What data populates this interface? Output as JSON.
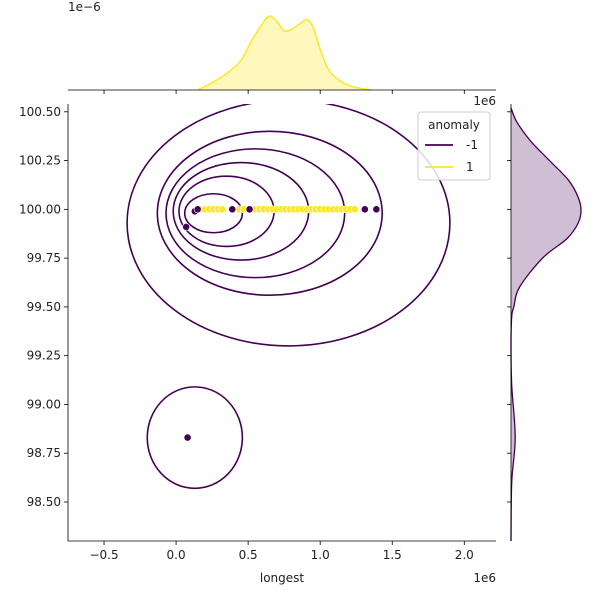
{
  "chart_data": {
    "type": "scatter",
    "title": "",
    "xlabel": "longest",
    "ylabel": "",
    "x_offset_label": "1e6",
    "y_offset_label": "1e6",
    "top_marginal_offset_label": "1e−6",
    "xlim": [
      -0.75,
      2.22
    ],
    "ylim": [
      98.3,
      100.54
    ],
    "x_ticks": [
      -0.5,
      0.0,
      0.5,
      1.0,
      1.5,
      2.0
    ],
    "x_tick_labels": [
      "−0.5",
      "0.0",
      "0.5",
      "1.0",
      "1.5",
      "2.0"
    ],
    "y_ticks": [
      98.5,
      98.75,
      99.0,
      99.25,
      99.5,
      99.75,
      100.0,
      100.25,
      100.5
    ],
    "y_tick_labels": [
      "98.50",
      "98.75",
      "99.00",
      "99.25",
      "99.50",
      "99.75",
      "100.00",
      "100.25",
      "100.50"
    ],
    "legend": {
      "title": "anomaly",
      "placement": "top-right",
      "entries": [
        {
          "label": "-1",
          "color": "#440154"
        },
        {
          "label": "1",
          "color": "#fde725"
        }
      ]
    },
    "series": [
      {
        "name": "-1",
        "color": "#440154",
        "points": [
          [
            0.07,
            99.91
          ],
          [
            0.13,
            99.99
          ],
          [
            0.15,
            100.0
          ],
          [
            0.39,
            100.0
          ],
          [
            0.51,
            100.0
          ],
          [
            1.31,
            100.0
          ],
          [
            1.39,
            100.0
          ],
          [
            0.08,
            98.83
          ]
        ]
      },
      {
        "name": "1",
        "color": "#fde725",
        "points": [
          [
            0.17,
            100.0
          ],
          [
            0.2,
            100.0
          ],
          [
            0.23,
            100.0
          ],
          [
            0.26,
            100.0
          ],
          [
            0.29,
            100.0
          ],
          [
            0.32,
            100.0
          ],
          [
            0.44,
            100.0
          ],
          [
            0.47,
            100.0
          ],
          [
            0.55,
            100.0
          ],
          [
            0.58,
            100.0
          ],
          [
            0.61,
            100.0
          ],
          [
            0.64,
            100.0
          ],
          [
            0.67,
            100.0
          ],
          [
            0.7,
            100.0
          ],
          [
            0.73,
            100.0
          ],
          [
            0.76,
            100.0
          ],
          [
            0.79,
            100.0
          ],
          [
            0.82,
            100.0
          ],
          [
            0.85,
            100.0
          ],
          [
            0.88,
            100.0
          ],
          [
            0.91,
            100.0
          ],
          [
            0.94,
            100.0
          ],
          [
            0.97,
            100.0
          ],
          [
            1.0,
            100.0
          ],
          [
            1.03,
            100.0
          ],
          [
            1.06,
            100.0
          ],
          [
            1.09,
            100.0
          ],
          [
            1.12,
            100.0
          ],
          [
            1.15,
            100.0
          ],
          [
            1.18,
            100.0
          ],
          [
            1.21,
            100.0
          ],
          [
            1.24,
            100.0
          ]
        ]
      }
    ],
    "marginal_top": {
      "series": "1",
      "color": "#fde725",
      "x": [
        0.15,
        0.25,
        0.35,
        0.45,
        0.52,
        0.6,
        0.65,
        0.7,
        0.75,
        0.8,
        0.86,
        0.91,
        0.95,
        1.0,
        1.05,
        1.1,
        1.2,
        1.35
      ],
      "density": [
        0.0,
        0.1,
        0.22,
        0.4,
        0.65,
        0.9,
        1.0,
        0.92,
        0.8,
        0.82,
        0.9,
        0.95,
        0.85,
        0.55,
        0.3,
        0.18,
        0.06,
        0.0
      ]
    },
    "marginal_right": {
      "series": "-1",
      "color": "#440154",
      "y": [
        98.3,
        98.6,
        98.83,
        99.1,
        99.3,
        99.45,
        99.5,
        99.6,
        99.75,
        99.85,
        99.93,
        100.0,
        100.07,
        100.15,
        100.25,
        100.35,
        100.45,
        100.52
      ],
      "density": [
        0.0,
        0.01,
        0.06,
        0.01,
        0.0,
        0.01,
        0.04,
        0.12,
        0.45,
        0.8,
        0.96,
        1.0,
        0.95,
        0.82,
        0.55,
        0.28,
        0.08,
        0.0
      ]
    },
    "contours": [
      {
        "cx": 0.26,
        "cy": 99.98,
        "rx": 0.2,
        "ry": 0.1
      },
      {
        "cx": 0.35,
        "cy": 99.99,
        "rx": 0.33,
        "ry": 0.18
      },
      {
        "cx": 0.45,
        "cy": 99.99,
        "rx": 0.47,
        "ry": 0.25
      },
      {
        "cx": 0.55,
        "cy": 99.98,
        "rx": 0.62,
        "ry": 0.33
      },
      {
        "cx": 0.65,
        "cy": 99.98,
        "rx": 0.78,
        "ry": 0.42
      },
      {
        "cx": 0.78,
        "cy": 99.93,
        "rx": 1.12,
        "ry": 0.63
      },
      {
        "cx": 0.13,
        "cy": 98.83,
        "rx": 0.33,
        "ry": 0.26
      }
    ]
  }
}
